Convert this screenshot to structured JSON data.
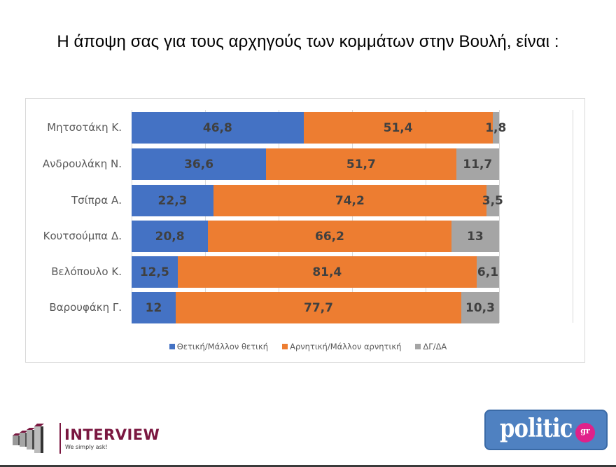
{
  "title": "Η άποψη σας για τους αρχηγούς των κομμάτων στην Βουλή,  είναι :",
  "colors": {
    "positive": "#4472C4",
    "negative": "#ED7D31",
    "dk": "#A5A5A5",
    "label_text": "#404040"
  },
  "legend": [
    {
      "label": "Θετική/Μάλλον θετική",
      "color": "#4472C4"
    },
    {
      "label": "Αρνητική/Μάλλον αρνητική",
      "color": "#ED7D31"
    },
    {
      "label": "ΔΓ/ΔΑ",
      "color": "#A5A5A5"
    }
  ],
  "chart_data": {
    "type": "bar",
    "orientation": "horizontal",
    "stacked": true,
    "title": "Η άποψη σας για τους αρχηγούς των κομμάτων στην Βουλή,  είναι :",
    "xlabel": "",
    "ylabel": "",
    "xlim": [
      0,
      120
    ],
    "x_major_unit": 20,
    "grid": true,
    "axis_tick_labels_visible": false,
    "legend_position": "bottom",
    "categories": [
      "Μητσοτάκη Κ.",
      "Ανδρουλάκη Ν.",
      "Τσίπρα Α.",
      "Κουτσούμπα Δ.",
      "Βελόπουλο Κ.",
      "Βαρουφάκη Γ."
    ],
    "series": [
      {
        "name": "Θετική/Μάλλον θετική",
        "color": "#4472C4",
        "values": [
          46.8,
          36.6,
          22.3,
          20.8,
          12.5,
          12
        ],
        "labels": [
          "46,8",
          "36,6",
          "22,3",
          "20,8",
          "12,5",
          "12"
        ]
      },
      {
        "name": "Αρνητική/Μάλλον αρνητική",
        "color": "#ED7D31",
        "values": [
          51.4,
          51.7,
          74.2,
          66.2,
          81.4,
          77.7
        ],
        "labels": [
          "51,4",
          "51,7",
          "74,2",
          "66,2",
          "81,4",
          "77,7"
        ]
      },
      {
        "name": "ΔΓ/ΔΑ",
        "color": "#A5A5A5",
        "values": [
          1.8,
          11.7,
          3.5,
          13,
          6.1,
          10.3
        ],
        "labels": [
          "1,8",
          "11,7",
          "3,5",
          "13",
          "6,1",
          "10,3"
        ]
      }
    ]
  },
  "logos": {
    "interview": {
      "name": "INTERVIEW",
      "tagline": "We simply ask!"
    },
    "politic": {
      "name": "politic",
      "suffix": "gr"
    }
  }
}
